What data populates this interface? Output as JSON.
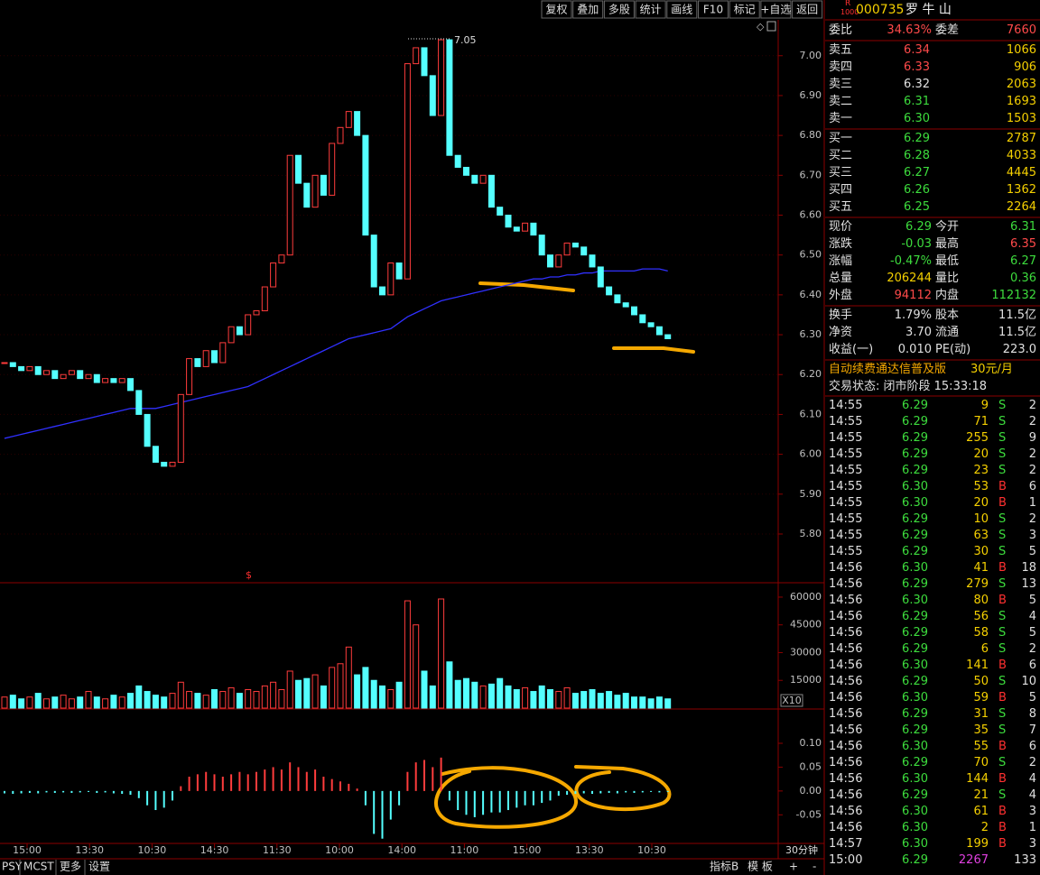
{
  "toolbar": [
    "复权",
    "叠加",
    "多股",
    "统计",
    "画线",
    "F10",
    "标记",
    "+自选",
    "返回"
  ],
  "header": {
    "badge_top": "R",
    "badge_bottom": "1000",
    "code": "000735",
    "name": "罗 牛 山"
  },
  "quote": {
    "ratio": [
      "委比",
      "34.63%",
      "委差",
      "7660",
      "#ff4a4a",
      "#ff4a4a"
    ],
    "asks": [
      [
        "卖五",
        "6.34",
        "1066",
        "#ff4a4a"
      ],
      [
        "卖四",
        "6.33",
        "906",
        "#ff4a4a"
      ],
      [
        "卖三",
        "6.32",
        "2063",
        "#e0e0e0"
      ],
      [
        "卖二",
        "6.31",
        "1693",
        "#3ddc3d"
      ],
      [
        "卖一",
        "6.30",
        "1503",
        "#3ddc3d"
      ]
    ],
    "bids": [
      [
        "买一",
        "6.29",
        "2787",
        "#3ddc3d"
      ],
      [
        "买二",
        "6.28",
        "4033",
        "#3ddc3d"
      ],
      [
        "买三",
        "6.27",
        "4445",
        "#3ddc3d"
      ],
      [
        "买四",
        "6.26",
        "1362",
        "#3ddc3d"
      ],
      [
        "买五",
        "6.25",
        "2264",
        "#3ddc3d"
      ]
    ],
    "stats": [
      [
        "现价",
        "6.29",
        "今开",
        "6.31",
        "#3ddc3d",
        "#3ddc3d"
      ],
      [
        "涨跌",
        "-0.03",
        "最高",
        "6.35",
        "#3ddc3d",
        "#ff4a4a"
      ],
      [
        "涨幅",
        "-0.47%",
        "最低",
        "6.27",
        "#3ddc3d",
        "#3ddc3d"
      ],
      [
        "总量",
        "206244",
        "量比",
        "0.36",
        "#f5d000",
        "#3ddc3d"
      ],
      [
        "外盘",
        "94112",
        "内盘",
        "112132",
        "#ff4a4a",
        "#3ddc3d"
      ],
      [
        "换手",
        "1.79%",
        "股本",
        "11.5亿",
        "#e0e0e0",
        "#e0e0e0"
      ],
      [
        "净资",
        "3.70",
        "流通",
        "11.5亿",
        "#e0e0e0",
        "#e0e0e0"
      ],
      [
        "收益(一)",
        "0.010",
        "PE(动)",
        "223.0",
        "#e0e0e0",
        "#e0e0e0"
      ]
    ]
  },
  "promo": [
    "自动续费通达信普及版",
    "30元/月"
  ],
  "status": "交易状态: 闭市阶段 15:33:18",
  "trades": [
    [
      "14:55",
      "6.29",
      "9",
      "S",
      "2"
    ],
    [
      "14:55",
      "6.29",
      "71",
      "S",
      "2"
    ],
    [
      "14:55",
      "6.29",
      "255",
      "S",
      "9"
    ],
    [
      "14:55",
      "6.29",
      "20",
      "S",
      "2"
    ],
    [
      "14:55",
      "6.29",
      "23",
      "S",
      "2"
    ],
    [
      "14:55",
      "6.30",
      "53",
      "B",
      "6"
    ],
    [
      "14:55",
      "6.30",
      "20",
      "B",
      "1"
    ],
    [
      "14:55",
      "6.29",
      "10",
      "S",
      "2"
    ],
    [
      "14:55",
      "6.29",
      "63",
      "S",
      "3"
    ],
    [
      "14:55",
      "6.29",
      "30",
      "S",
      "5"
    ],
    [
      "14:56",
      "6.30",
      "41",
      "B",
      "18"
    ],
    [
      "14:56",
      "6.29",
      "279",
      "S",
      "13"
    ],
    [
      "14:56",
      "6.30",
      "80",
      "B",
      "5"
    ],
    [
      "14:56",
      "6.29",
      "56",
      "S",
      "4"
    ],
    [
      "14:56",
      "6.29",
      "58",
      "S",
      "5"
    ],
    [
      "14:56",
      "6.29",
      "6",
      "S",
      "2"
    ],
    [
      "14:56",
      "6.30",
      "141",
      "B",
      "6"
    ],
    [
      "14:56",
      "6.29",
      "50",
      "S",
      "10"
    ],
    [
      "14:56",
      "6.30",
      "59",
      "B",
      "5"
    ],
    [
      "14:56",
      "6.29",
      "31",
      "S",
      "8"
    ],
    [
      "14:56",
      "6.29",
      "35",
      "S",
      "7"
    ],
    [
      "14:56",
      "6.30",
      "55",
      "B",
      "6"
    ],
    [
      "14:56",
      "6.29",
      "70",
      "S",
      "2"
    ],
    [
      "14:56",
      "6.30",
      "144",
      "B",
      "4"
    ],
    [
      "14:56",
      "6.29",
      "21",
      "S",
      "4"
    ],
    [
      "14:56",
      "6.30",
      "61",
      "B",
      "3"
    ],
    [
      "14:56",
      "6.30",
      "2",
      "B",
      "1"
    ],
    [
      "14:57",
      "6.30",
      "199",
      "B",
      "3"
    ],
    [
      "15:00",
      "6.29",
      "2267",
      "133"
    ]
  ],
  "chart_data": {
    "type": "candlestick",
    "x_labels": [
      "15:00",
      "13:30",
      "10:30",
      "14:30",
      "11:30",
      "10:00",
      "14:00",
      "11:00",
      "15:00",
      "13:30",
      "10:30"
    ],
    "close": [
      6.23,
      6.22,
      6.21,
      6.22,
      6.2,
      6.21,
      6.19,
      6.2,
      6.21,
      6.19,
      6.2,
      6.18,
      6.19,
      6.18,
      6.19,
      6.16,
      6.1,
      6.02,
      5.98,
      5.97,
      5.98,
      6.15,
      6.24,
      6.22,
      6.26,
      6.23,
      6.28,
      6.32,
      6.3,
      6.35,
      6.36,
      6.42,
      6.48,
      6.5,
      6.75,
      6.68,
      6.62,
      6.7,
      6.65,
      6.78,
      6.82,
      6.86,
      6.8,
      6.55,
      6.42,
      6.4,
      6.48,
      6.44,
      6.98,
      7.02,
      6.95,
      6.85,
      7.04,
      6.75,
      6.72,
      6.7,
      6.68,
      6.7,
      6.62,
      6.6,
      6.57,
      6.56,
      6.58,
      6.55,
      6.5,
      6.47,
      6.5,
      6.53,
      6.52,
      6.5,
      6.47,
      6.42,
      6.4,
      6.38,
      6.37,
      6.35,
      6.33,
      6.32,
      6.3,
      6.29
    ],
    "up_color": "#ff3c3c",
    "down_color": "#54ffff",
    "ma": {
      "color": "#3030ff",
      "values": [
        6.04,
        6.045,
        6.05,
        6.055,
        6.06,
        6.065,
        6.07,
        6.075,
        6.08,
        6.085,
        6.09,
        6.095,
        6.1,
        6.105,
        6.11,
        6.115,
        6.115,
        6.115,
        6.115,
        6.12,
        6.125,
        6.13,
        6.135,
        6.14,
        6.145,
        6.15,
        6.155,
        6.16,
        6.165,
        6.17,
        6.18,
        6.19,
        6.2,
        6.21,
        6.22,
        6.23,
        6.24,
        6.25,
        6.26,
        6.27,
        6.28,
        6.29,
        6.295,
        6.3,
        6.305,
        6.31,
        6.315,
        6.33,
        6.345,
        6.355,
        6.365,
        6.375,
        6.385,
        6.39,
        6.395,
        6.4,
        6.405,
        6.41,
        6.415,
        6.42,
        6.425,
        6.43,
        6.435,
        6.44,
        6.44,
        6.445,
        6.445,
        6.45,
        6.45,
        6.455,
        6.455,
        6.46,
        6.46,
        6.46,
        6.46,
        6.46,
        6.465,
        6.465,
        6.465,
        6.46
      ]
    },
    "ylim": [
      5.68,
      7.09
    ],
    "yticks": [
      {
        "value": 7.0,
        "label": "7.00"
      },
      {
        "value": 6.9,
        "label": "6.90"
      },
      {
        "value": 6.8,
        "label": "6.80"
      },
      {
        "value": 6.7,
        "label": "6.70"
      },
      {
        "value": 6.6,
        "label": "6.60"
      },
      {
        "value": 6.5,
        "label": "6.50"
      },
      {
        "value": 6.4,
        "label": "6.40"
      },
      {
        "value": 6.3,
        "label": "6.30"
      },
      {
        "value": 6.2,
        "label": "6.20"
      },
      {
        "value": 6.1,
        "label": "6.10"
      },
      {
        "value": 6.0,
        "label": "6.00"
      },
      {
        "value": 5.9,
        "label": "5.90"
      },
      {
        "value": 5.8,
        "label": "5.80"
      }
    ],
    "max_label": "7.05",
    "marker": "$",
    "volume": {
      "values": [
        6000,
        7000,
        5000,
        6000,
        8000,
        5000,
        6000,
        7000,
        5000,
        6000,
        9000,
        6000,
        5000,
        7000,
        6000,
        8000,
        12000,
        9000,
        7000,
        6000,
        8000,
        14000,
        9000,
        8000,
        7000,
        10000,
        9000,
        11000,
        8000,
        10000,
        9000,
        12000,
        14000,
        10000,
        20000,
        15000,
        16000,
        18000,
        12000,
        22000,
        24000,
        33000,
        18000,
        22000,
        15000,
        12000,
        10000,
        14000,
        58000,
        45000,
        20000,
        12000,
        59000,
        25000,
        15000,
        16000,
        14000,
        12000,
        13000,
        16000,
        12000,
        10000,
        11000,
        9000,
        12000,
        10000,
        9000,
        11000,
        8000,
        9000,
        10000,
        8000,
        9000,
        7000,
        8000,
        6000,
        6000,
        5000,
        6000,
        5000
      ],
      "ylim": [
        0,
        66800
      ],
      "yticks": [
        60000,
        45000,
        30000,
        15000
      ],
      "scale_label": "X10"
    },
    "macd": {
      "values": [
        -0.005,
        -0.006,
        -0.005,
        -0.004,
        -0.005,
        -0.003,
        -0.004,
        -0.003,
        -0.004,
        -0.003,
        -0.002,
        -0.004,
        -0.003,
        -0.005,
        -0.006,
        -0.008,
        -0.015,
        -0.03,
        -0.04,
        -0.035,
        -0.02,
        0.01,
        0.03,
        0.035,
        0.04,
        0.035,
        0.03,
        0.035,
        0.04,
        0.035,
        0.04,
        0.045,
        0.05,
        0.045,
        0.06,
        0.05,
        0.04,
        0.045,
        0.03,
        0.025,
        0.02,
        0.015,
        0.005,
        -0.03,
        -0.09,
        -0.1,
        -0.06,
        -0.03,
        0.04,
        0.06,
        0.065,
        0.05,
        0.07,
        -0.02,
        -0.04,
        -0.05,
        -0.055,
        -0.05,
        -0.045,
        -0.045,
        -0.04,
        -0.035,
        -0.03,
        -0.03,
        -0.025,
        -0.02,
        -0.01,
        -0.008,
        -0.006,
        -0.005,
        -0.006,
        -0.005,
        -0.004,
        -0.005,
        -0.003,
        -0.004,
        -0.003,
        -0.002,
        -0.003,
        -0.002
      ],
      "ylim": [
        -0.11,
        0.17
      ],
      "yticks": [
        {
          "value": 0.1,
          "label": "0.10"
        },
        {
          "value": 0.05,
          "label": "0.05"
        },
        {
          "value": 0,
          "label": "0.00"
        },
        {
          "value": -0.05,
          "label": "-0.05"
        }
      ]
    }
  },
  "bottom_tabs": {
    "left": [
      "PSY",
      "MCST",
      "更多",
      "设置"
    ],
    "right": [
      "指标B",
      "模 板",
      "+",
      "-"
    ],
    "period": "30分钟"
  }
}
